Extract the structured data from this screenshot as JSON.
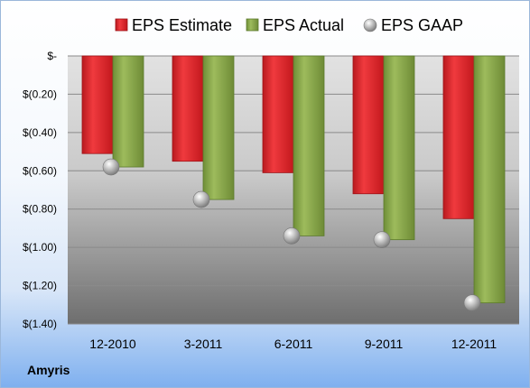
{
  "company": "Amyris",
  "colors": {
    "estimate": "#e0262b",
    "estimate_dark": "#9e1217",
    "actual": "#8cab4e",
    "actual_dark": "#5c7a2c",
    "gaap": "#b5b5b5"
  },
  "chart_data": {
    "type": "bar",
    "categories": [
      "12-2010",
      "3-2011",
      "6-2011",
      "9-2011",
      "12-2011"
    ],
    "series": [
      {
        "name": "EPS Estimate",
        "values": [
          -0.51,
          -0.55,
          -0.61,
          -0.72,
          -0.85
        ]
      },
      {
        "name": "EPS Actual",
        "values": [
          -0.58,
          -0.75,
          -0.94,
          -0.96,
          -1.29
        ]
      },
      {
        "name": "EPS GAAP",
        "type": "scatter",
        "values": [
          -0.58,
          -0.75,
          -0.94,
          -0.96,
          -1.29
        ]
      }
    ],
    "ylim": [
      -1.4,
      0
    ],
    "yticks": [
      0,
      -0.2,
      -0.4,
      -0.6,
      -0.8,
      -1.0,
      -1.2,
      -1.4
    ],
    "ytick_labels": [
      "$-",
      "$(0.20)",
      "$(0.40)",
      "$(0.60)",
      "$(0.80)",
      "$(1.00)",
      "$(1.20)",
      "$(1.40)"
    ],
    "grid": true,
    "legend_position": "top"
  }
}
